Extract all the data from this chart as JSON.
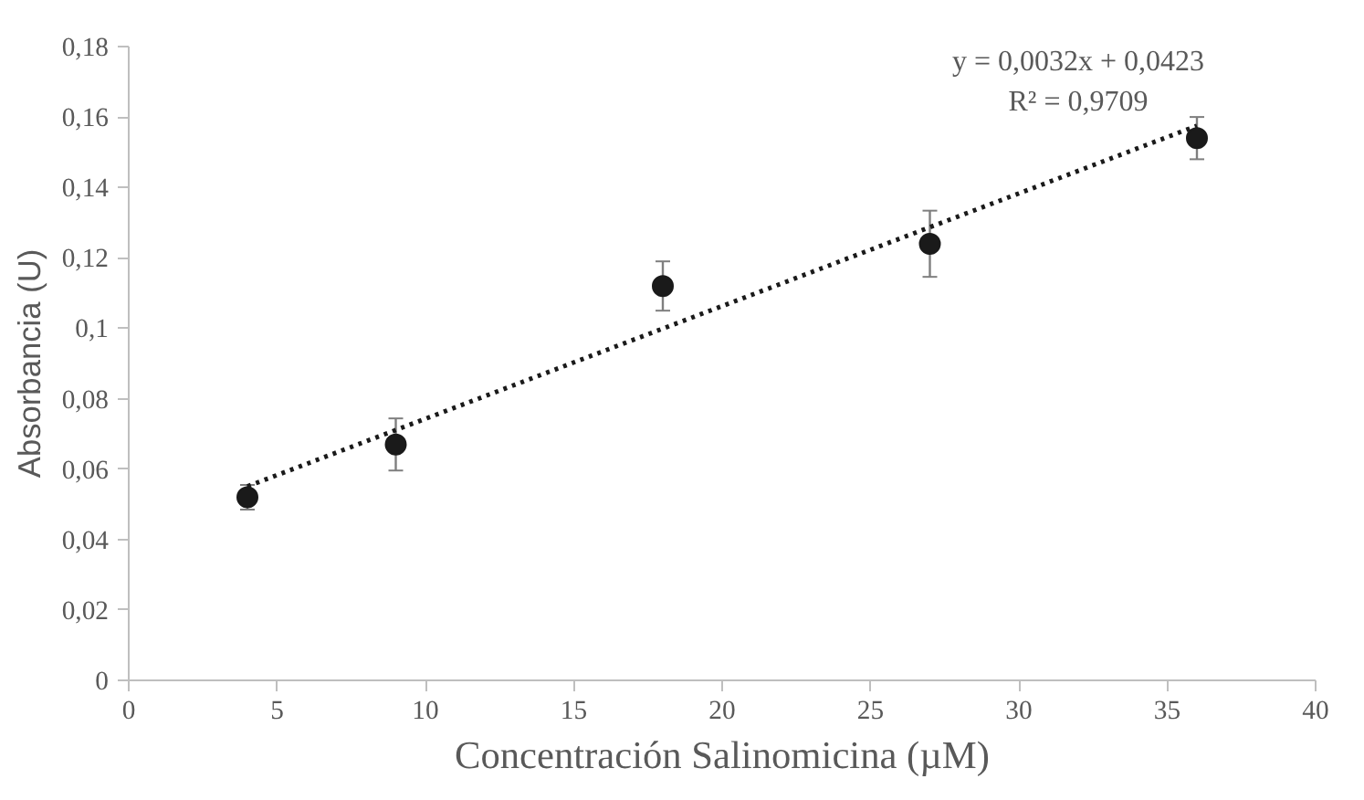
{
  "chart_data": {
    "type": "scatter",
    "xlabel": "Concentración Salinomicina (µM)",
    "ylabel": "Absorbancia (U)",
    "annotations": [
      "y = 0,0032x + 0,0423",
      "R² = 0,9709"
    ],
    "xlim": [
      0,
      40
    ],
    "xticks": [
      0,
      5,
      10,
      15,
      20,
      25,
      30,
      35,
      40
    ],
    "ylim": [
      0,
      0.18
    ],
    "yticks": [
      0,
      {
        "value": 0.02,
        "label": "0,02"
      },
      {
        "value": 0.04,
        "label": "0,04"
      },
      {
        "value": 0.06,
        "label": "0,06"
      },
      {
        "value": 0.08,
        "label": "0,08"
      },
      {
        "value": 0.1,
        "label": "0,1"
      },
      {
        "value": 0.12,
        "label": "0,12"
      },
      {
        "value": 0.14,
        "label": "0,14"
      },
      {
        "value": 0.16,
        "label": "0,16"
      },
      {
        "value": 0.18,
        "label": "0,18"
      }
    ],
    "grid": false,
    "marker": "circle",
    "series": [
      {
        "color": "#1a1a1a",
        "x": [
          4,
          9,
          18,
          27,
          36
        ],
        "values": [
          0.052,
          0.067,
          0.112,
          0.124,
          0.154
        ],
        "errors": [
          0.0035,
          0.0074,
          0.007,
          0.0094,
          0.006
        ]
      },
      {
        "type": "line",
        "color": "#1a1a1a",
        "line_style": "dotted",
        "marker": "none",
        "x": [
          4,
          36
        ],
        "values": [
          0.0551,
          0.1575
        ]
      }
    ]
  }
}
